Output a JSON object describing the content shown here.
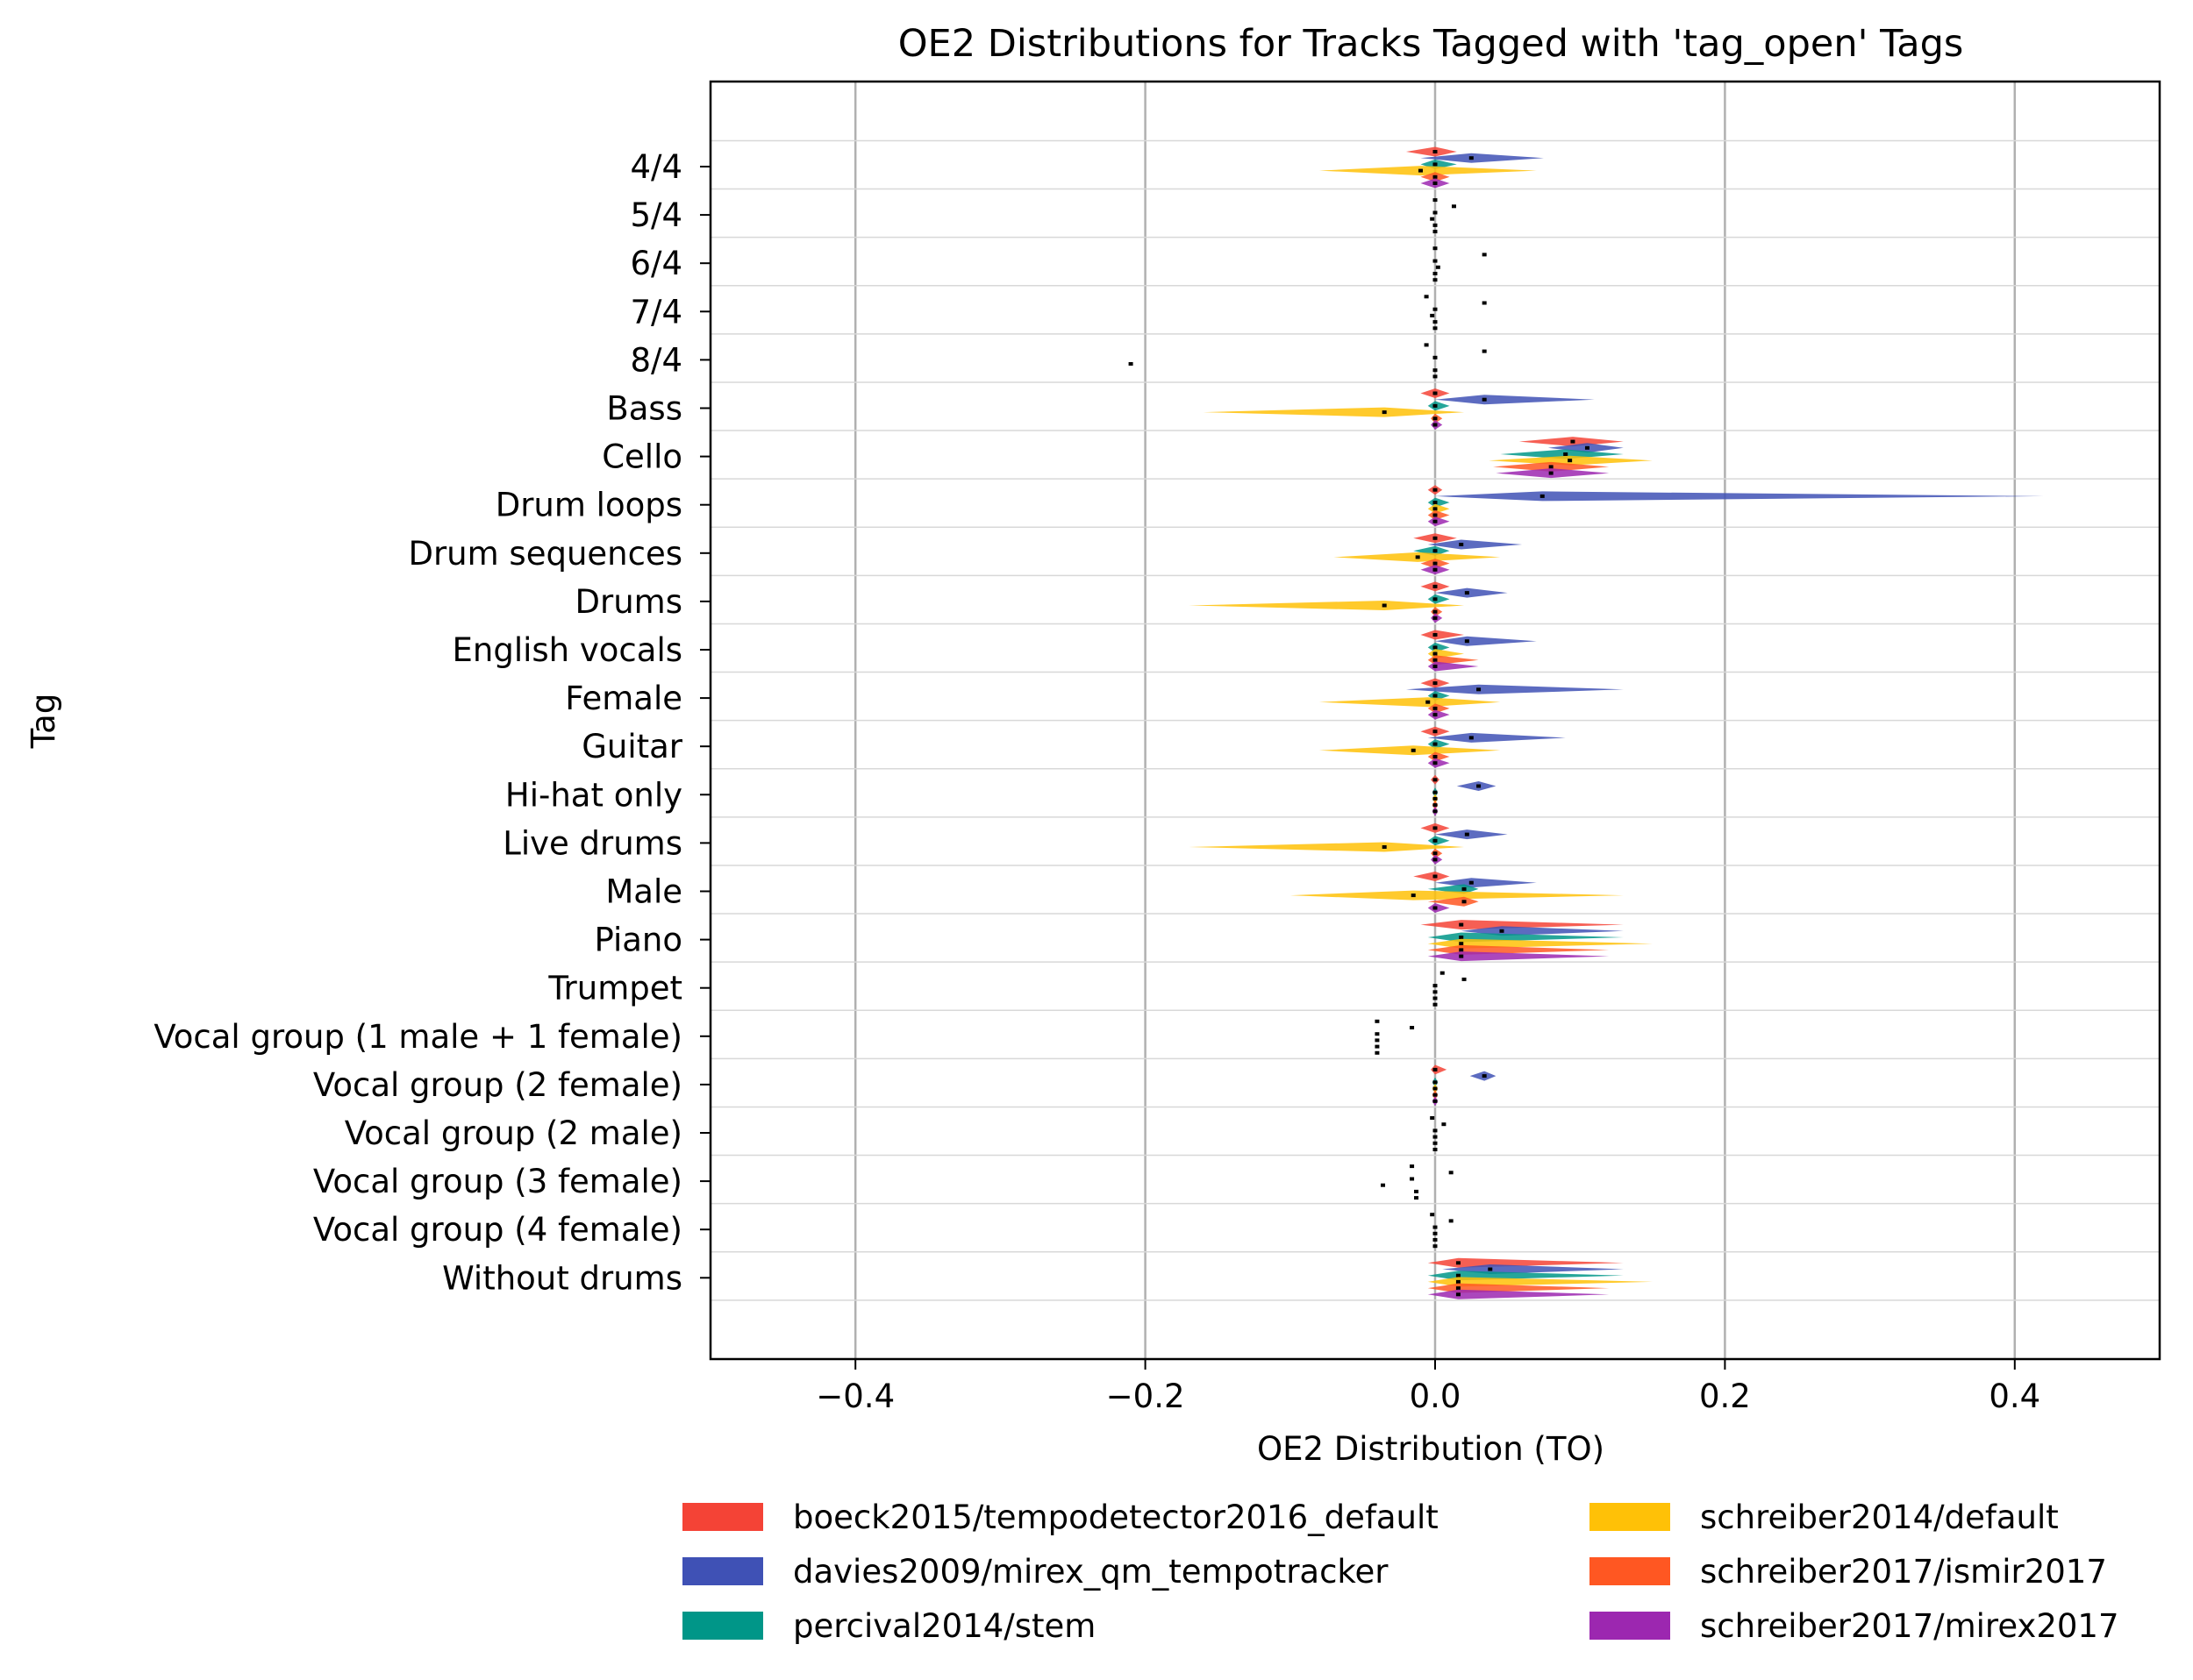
{
  "chart_data": {
    "type": "violin",
    "title": "OE2 Distributions for Tracks Tagged with 'tag_open' Tags",
    "xlabel": "OE2 Distribution (TO)",
    "ylabel": "Tag",
    "xlim": [
      -0.5,
      0.5
    ],
    "xticks": [
      -0.4,
      -0.2,
      0.0,
      0.2,
      0.4
    ],
    "xtick_labels": [
      "−0.4",
      "−0.2",
      "0.0",
      "0.2",
      "0.4"
    ],
    "grid": "x",
    "legend_position": "bottom",
    "series": [
      {
        "name": "boeck2015/tempodetector2016_default",
        "color": "#f44336"
      },
      {
        "name": "davies2009/mirex_qm_tempotracker",
        "color": "#3f51b5"
      },
      {
        "name": "percival2014/stem",
        "color": "#009688"
      },
      {
        "name": "schreiber2014/default",
        "color": "#ffc107"
      },
      {
        "name": "schreiber2017/ismir2017",
        "color": "#ff5722"
      },
      {
        "name": "schreiber2017/mirex2017",
        "color": "#9c27b0"
      }
    ],
    "categories": [
      {
        "tag": "4/4",
        "medians": [
          0.0,
          0.025,
          0.0,
          -0.01,
          0.0,
          0.0
        ],
        "ranges": [
          [
            -0.02,
            0.015
          ],
          [
            -0.01,
            0.075
          ],
          [
            -0.01,
            0.015
          ],
          [
            -0.08,
            0.07
          ],
          [
            -0.01,
            0.01
          ],
          [
            -0.01,
            0.01
          ]
        ]
      },
      {
        "tag": "5/4",
        "medians": [
          0.0,
          0.013,
          0.0,
          -0.002,
          0.0,
          0.0
        ]
      },
      {
        "tag": "6/4",
        "medians": [
          0.0,
          0.034,
          0.0,
          0.002,
          0.0,
          0.0
        ]
      },
      {
        "tag": "7/4",
        "medians": [
          -0.006,
          0.034,
          0.0,
          -0.002,
          0.0,
          0.0
        ]
      },
      {
        "tag": "8/4",
        "medians": [
          -0.006,
          0.034,
          0.0,
          -0.21,
          0.0,
          0.0
        ]
      },
      {
        "tag": "Bass",
        "medians": [
          0.0,
          0.034,
          0.0,
          -0.035,
          0.0,
          0.0
        ],
        "ranges": [
          [
            -0.01,
            0.01
          ],
          [
            0.0,
            0.11
          ],
          [
            -0.005,
            0.01
          ],
          [
            -0.16,
            0.02
          ],
          [
            -0.003,
            0.005
          ],
          [
            -0.003,
            0.005
          ]
        ]
      },
      {
        "tag": "Cello",
        "medians": [
          0.095,
          0.105,
          0.09,
          0.093,
          0.08,
          0.08
        ],
        "ranges": [
          [
            0.058,
            0.13
          ],
          [
            0.078,
            0.13
          ],
          [
            0.045,
            0.13
          ],
          [
            0.037,
            0.15
          ],
          [
            0.04,
            0.12
          ],
          [
            0.042,
            0.12
          ]
        ]
      },
      {
        "tag": "Drum loops",
        "medians": [
          0.0,
          0.074,
          0.0,
          0.0,
          0.0,
          0.0
        ],
        "ranges": [
          [
            -0.005,
            0.005
          ],
          [
            0.0,
            0.42
          ],
          [
            -0.005,
            0.01
          ],
          [
            -0.005,
            0.01
          ],
          [
            -0.005,
            0.01
          ],
          [
            -0.005,
            0.01
          ]
        ]
      },
      {
        "tag": "Drum sequences",
        "medians": [
          0.0,
          0.018,
          0.0,
          -0.012,
          0.0,
          0.0
        ],
        "ranges": [
          [
            -0.015,
            0.015
          ],
          [
            -0.005,
            0.06
          ],
          [
            -0.015,
            0.01
          ],
          [
            -0.07,
            0.045
          ],
          [
            -0.01,
            0.01
          ],
          [
            -0.01,
            0.01
          ]
        ]
      },
      {
        "tag": "Drums",
        "medians": [
          0.0,
          0.022,
          0.0,
          -0.035,
          0.0,
          0.0
        ],
        "ranges": [
          [
            -0.01,
            0.01
          ],
          [
            0.0,
            0.05
          ],
          [
            -0.005,
            0.01
          ],
          [
            -0.17,
            0.02
          ],
          [
            -0.003,
            0.005
          ],
          [
            -0.003,
            0.005
          ]
        ]
      },
      {
        "tag": "English vocals",
        "medians": [
          0.0,
          0.022,
          0.0,
          0.0,
          0.0,
          0.0
        ],
        "ranges": [
          [
            -0.01,
            0.02
          ],
          [
            0.0,
            0.07
          ],
          [
            -0.005,
            0.01
          ],
          [
            -0.005,
            0.02
          ],
          [
            -0.005,
            0.03
          ],
          [
            -0.005,
            0.03
          ]
        ]
      },
      {
        "tag": "Female",
        "medians": [
          0.0,
          0.03,
          0.0,
          -0.005,
          0.0,
          0.0
        ],
        "ranges": [
          [
            -0.01,
            0.01
          ],
          [
            -0.02,
            0.13
          ],
          [
            -0.005,
            0.01
          ],
          [
            -0.08,
            0.045
          ],
          [
            -0.005,
            0.01
          ],
          [
            -0.005,
            0.01
          ]
        ]
      },
      {
        "tag": "Guitar",
        "medians": [
          0.0,
          0.025,
          0.0,
          -0.015,
          0.0,
          0.0
        ],
        "ranges": [
          [
            -0.01,
            0.01
          ],
          [
            -0.005,
            0.09
          ],
          [
            -0.005,
            0.01
          ],
          [
            -0.08,
            0.045
          ],
          [
            -0.005,
            0.01
          ],
          [
            -0.005,
            0.01
          ]
        ]
      },
      {
        "tag": "Hi-hat only",
        "medians": [
          0.0,
          0.03,
          0.0,
          0.0,
          0.0,
          0.0
        ],
        "ranges": [
          [
            -0.003,
            0.003
          ],
          [
            0.015,
            0.042
          ],
          [
            -0.002,
            0.002
          ],
          [
            -0.002,
            0.002
          ],
          [
            -0.002,
            0.002
          ],
          [
            -0.002,
            0.002
          ]
        ]
      },
      {
        "tag": "Live drums",
        "medians": [
          0.0,
          0.022,
          0.0,
          -0.035,
          0.0,
          0.0
        ],
        "ranges": [
          [
            -0.01,
            0.01
          ],
          [
            0.0,
            0.05
          ],
          [
            -0.005,
            0.01
          ],
          [
            -0.17,
            0.02
          ],
          [
            -0.003,
            0.005
          ],
          [
            -0.003,
            0.005
          ]
        ]
      },
      {
        "tag": "Male",
        "medians": [
          0.0,
          0.025,
          0.02,
          -0.015,
          0.02,
          0.0
        ],
        "ranges": [
          [
            -0.015,
            0.01
          ],
          [
            0.0,
            0.07
          ],
          [
            -0.005,
            0.03
          ],
          [
            -0.1,
            0.13
          ],
          [
            -0.005,
            0.03
          ],
          [
            -0.005,
            0.01
          ]
        ]
      },
      {
        "tag": "Piano",
        "medians": [
          0.018,
          0.046,
          0.018,
          0.018,
          0.018,
          0.018
        ],
        "ranges": [
          [
            -0.01,
            0.13
          ],
          [
            0.018,
            0.13
          ],
          [
            -0.005,
            0.13
          ],
          [
            -0.005,
            0.15
          ],
          [
            -0.005,
            0.12
          ],
          [
            -0.005,
            0.12
          ]
        ]
      },
      {
        "tag": "Trumpet",
        "medians": [
          0.005,
          0.02,
          0.0,
          0.0,
          0.0,
          0.0
        ]
      },
      {
        "tag": "Vocal group (1 male + 1 female)",
        "medians": [
          -0.04,
          -0.016,
          -0.04,
          -0.04,
          -0.04,
          -0.04
        ]
      },
      {
        "tag": "Vocal group (2 female)",
        "medians": [
          0.0,
          0.034,
          0.0,
          0.0,
          0.0,
          0.0
        ],
        "ranges": [
          [
            -0.003,
            0.008
          ],
          [
            0.024,
            0.042
          ],
          [
            -0.002,
            0.002
          ],
          [
            -0.002,
            0.002
          ],
          [
            -0.002,
            0.002
          ],
          [
            -0.002,
            0.002
          ]
        ]
      },
      {
        "tag": "Vocal group (2 male)",
        "medians": [
          -0.002,
          0.006,
          0.0,
          0.0,
          0.0,
          0.0
        ]
      },
      {
        "tag": "Vocal group (3 female)",
        "medians": [
          -0.016,
          0.011,
          -0.016,
          -0.036,
          -0.013,
          -0.013
        ]
      },
      {
        "tag": "Vocal group (4 female)",
        "medians": [
          -0.002,
          0.011,
          0.0,
          0.0,
          0.0,
          0.0
        ]
      },
      {
        "tag": "Without drums",
        "medians": [
          0.016,
          0.038,
          0.016,
          0.016,
          0.016,
          0.016
        ],
        "ranges": [
          [
            -0.005,
            0.13
          ],
          [
            0.005,
            0.13
          ],
          [
            -0.005,
            0.13
          ],
          [
            -0.005,
            0.15
          ],
          [
            -0.005,
            0.12
          ],
          [
            -0.005,
            0.12
          ]
        ]
      }
    ]
  }
}
